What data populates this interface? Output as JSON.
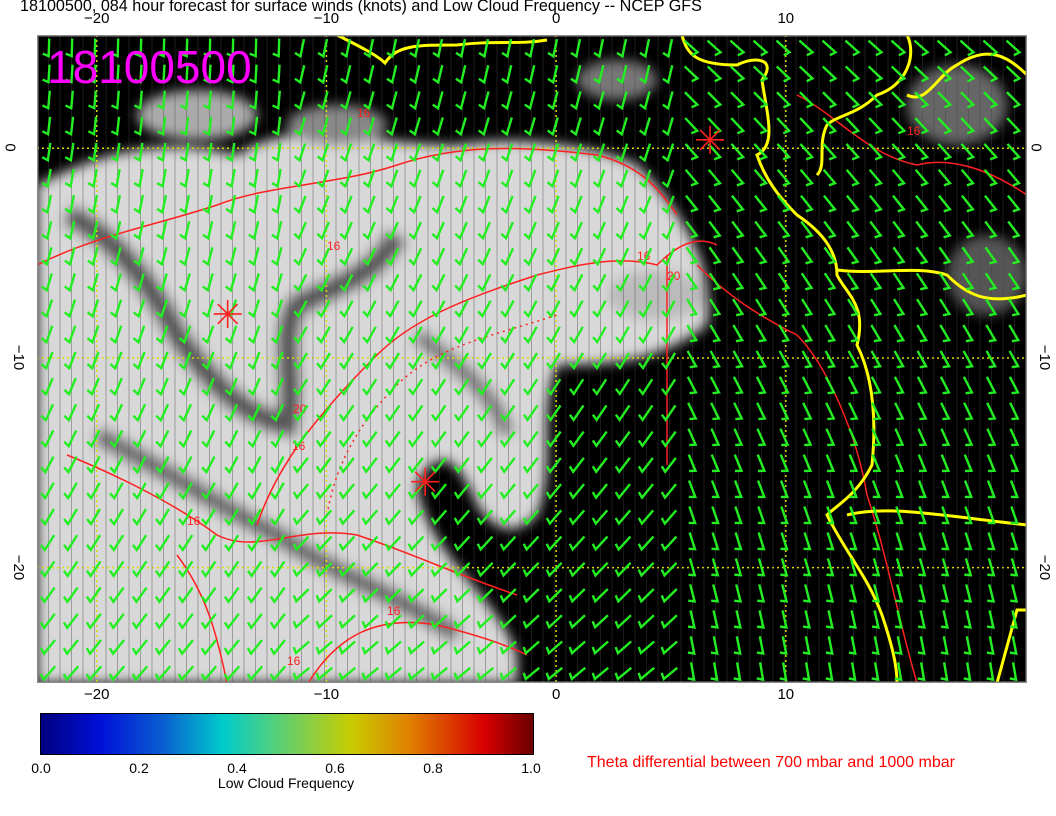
{
  "title": "18100500, 084 hour forecast for surface winds (knots) and Low Cloud Frequency -- NCEP GFS",
  "stamp": "18100500",
  "map": {
    "lon_range": [
      -22.6,
      20.5
    ],
    "lat_range": [
      -25.5,
      5.4
    ],
    "lon_ticks": [
      "−20",
      "−10",
      "0",
      "10"
    ],
    "lon_tick_values": [
      -20,
      -10,
      0,
      10
    ],
    "lat_ticks": [
      "0",
      "−10",
      "−20"
    ],
    "lat_tick_values": [
      0,
      -10,
      -20
    ],
    "colors": {
      "background": "#000000",
      "wind_barbs": "#22ee22",
      "coastline": "#ffff00",
      "contours": "#ff0000",
      "stamp": "#ff00ff",
      "gridlines": "#dddd00"
    },
    "contour_labels": [
      "16",
      "16",
      "16",
      "20",
      "20",
      "16",
      "16",
      "16",
      "16",
      "16"
    ],
    "markers": [
      {
        "lon": -14.3,
        "lat": -7.9
      },
      {
        "lon": -5.7,
        "lat": -15.9
      },
      {
        "lon": 6.7,
        "lat": 0.4
      }
    ]
  },
  "colorbar": {
    "label": "Low Cloud Frequency",
    "ticks": [
      "0.0",
      "0.2",
      "0.4",
      "0.6",
      "0.8",
      "1.0"
    ],
    "range": [
      0,
      1
    ]
  },
  "contour_title": "Theta differential between 700 mbar and 1000 mbar"
}
